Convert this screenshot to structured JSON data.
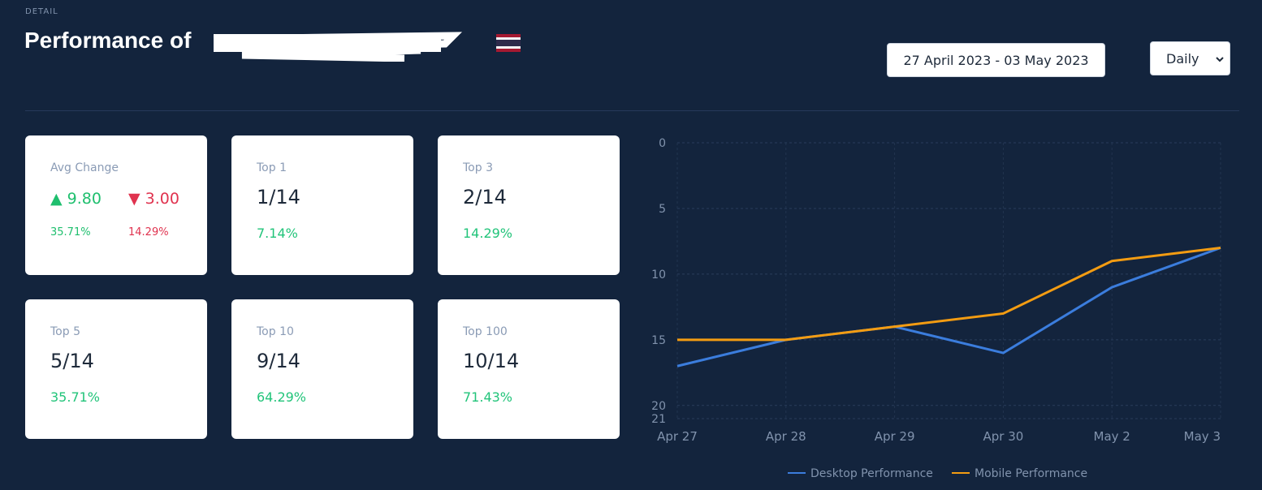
{
  "header": {
    "label": "DETAIL",
    "title": "Performance of"
  },
  "date_range": "27 April 2023 - 03 May 2023",
  "interval": "Daily",
  "cards": [
    {
      "title": "Avg Change",
      "up": {
        "value": "9.80",
        "pct": "35.71%"
      },
      "down": {
        "value": "3.00",
        "pct": "14.29%"
      }
    },
    {
      "title": "Top 1",
      "value": "1/14",
      "pct": "7.14%"
    },
    {
      "title": "Top 3",
      "value": "2/14",
      "pct": "14.29%"
    },
    {
      "title": "Top 5",
      "value": "5/14",
      "pct": "35.71%"
    },
    {
      "title": "Top 10",
      "value": "9/14",
      "pct": "64.29%"
    },
    {
      "title": "Top 100",
      "value": "10/14",
      "pct": "71.43%"
    }
  ],
  "chart_data": {
    "type": "line",
    "categories": [
      "Apr 27",
      "Apr 28",
      "Apr 29",
      "Apr 30",
      "May 2",
      "May 3"
    ],
    "series": [
      {
        "name": "Desktop Performance",
        "color": "#3b7ddd",
        "values": [
          17,
          15,
          14,
          16,
          11,
          8
        ]
      },
      {
        "name": "Mobile Performance",
        "color": "#f39c12",
        "values": [
          15,
          15,
          14,
          13,
          9,
          8
        ]
      }
    ],
    "ylim": [
      0,
      21
    ],
    "yticks": [
      0,
      5,
      10,
      15,
      20,
      21
    ],
    "y_reversed": true,
    "grid": true,
    "legend": "bottom"
  }
}
